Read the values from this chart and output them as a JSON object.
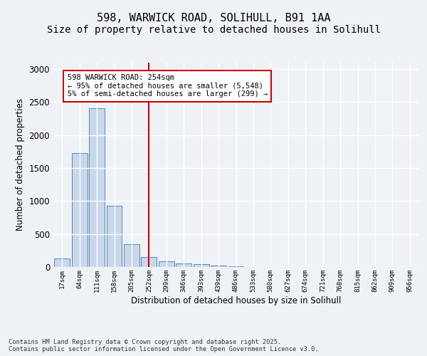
{
  "title1": "598, WARWICK ROAD, SOLIHULL, B91 1AA",
  "title2": "Size of property relative to detached houses in Solihull",
  "xlabel": "Distribution of detached houses by size in Solihull",
  "ylabel": "Number of detached properties",
  "categories": [
    "17sqm",
    "64sqm",
    "111sqm",
    "158sqm",
    "205sqm",
    "252sqm",
    "299sqm",
    "346sqm",
    "393sqm",
    "439sqm",
    "486sqm",
    "533sqm",
    "580sqm",
    "627sqm",
    "674sqm",
    "721sqm",
    "768sqm",
    "815sqm",
    "862sqm",
    "909sqm",
    "956sqm"
  ],
  "values": [
    130,
    1720,
    2400,
    930,
    340,
    155,
    90,
    50,
    40,
    20,
    10,
    5,
    3,
    2,
    1,
    0,
    0,
    0,
    0,
    0,
    0
  ],
  "bar_color": "#c8d8e8",
  "bar_edge_color": "#5588bb",
  "vline_color": "#cc0000",
  "annotation_text": "598 WARWICK ROAD: 254sqm\n← 95% of detached houses are smaller (5,548)\n5% of semi-detached houses are larger (299) →",
  "annotation_box_color": "#ffffff",
  "annotation_box_edge_color": "#cc0000",
  "bg_color": "#eef2f7",
  "grid_color": "#ffffff",
  "footer_text": "Contains HM Land Registry data © Crown copyright and database right 2025.\nContains public sector information licensed under the Open Government Licence v3.0.",
  "ylim": [
    0,
    3100
  ],
  "title_fontsize": 11,
  "subtitle_fontsize": 10
}
